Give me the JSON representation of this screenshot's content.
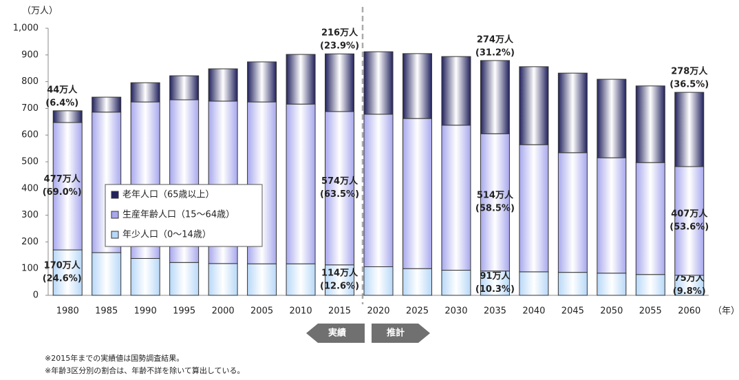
{
  "chart_data": {
    "type": "stacked_bar",
    "y_unit_label": "（万人）",
    "x_unit_label": "（年）",
    "categories": [
      "1980",
      "1985",
      "1990",
      "1995",
      "2000",
      "2005",
      "2010",
      "2015",
      "2020",
      "2025",
      "2030",
      "2035",
      "2040",
      "2045",
      "2050",
      "2055",
      "2060"
    ],
    "ylim": [
      0,
      1000
    ],
    "yticks": [
      0,
      100,
      200,
      300,
      400,
      500,
      600,
      700,
      800,
      900,
      {
        "value": 1000,
        "label": "1,000"
      }
    ],
    "series": [
      {
        "name": "年少人口（0～14歳）",
        "color": "#b8d8f8",
        "values": [
          170,
          160,
          138,
          123,
          119,
          118,
          118,
          114,
          107,
          100,
          94,
          91,
          88,
          86,
          83,
          78,
          75
        ],
        "value_labels": [
          "170万人",
          null,
          null,
          null,
          null,
          null,
          null,
          "114万人",
          null,
          null,
          null,
          "91万人",
          null,
          null,
          null,
          null,
          "75万人"
        ],
        "share_labels": [
          "(24.6%)",
          null,
          null,
          null,
          null,
          null,
          null,
          "(12.6%)",
          null,
          null,
          null,
          "(10.3%)",
          null,
          null,
          null,
          null,
          "(9.8%)"
        ]
      },
      {
        "name": "生産年齢人口（15～64歳）",
        "color": "#a8a8ee",
        "values": [
          477,
          526,
          586,
          609,
          608,
          606,
          598,
          574,
          571,
          562,
          543,
          514,
          476,
          448,
          432,
          419,
          407
        ],
        "value_labels": [
          "477万人",
          null,
          null,
          null,
          null,
          null,
          null,
          "574万人",
          null,
          null,
          null,
          "514万人",
          null,
          null,
          null,
          null,
          "407万人"
        ],
        "share_labels": [
          "(69.0%)",
          null,
          null,
          null,
          null,
          null,
          null,
          "(63.5%)",
          null,
          null,
          null,
          "(58.5%)",
          null,
          null,
          null,
          null,
          "(53.6%)"
        ]
      },
      {
        "name": "老年人口（65歳以上）",
        "color": "#22225e",
        "values": [
          44,
          56,
          72,
          90,
          121,
          150,
          186,
          216,
          234,
          243,
          257,
          274,
          292,
          298,
          294,
          287,
          278
        ],
        "value_labels": [
          "44万人",
          null,
          null,
          null,
          null,
          null,
          null,
          "216万人",
          null,
          null,
          null,
          "274万人",
          null,
          null,
          null,
          null,
          "278万人"
        ],
        "share_labels": [
          "(6.4%)",
          null,
          null,
          null,
          null,
          null,
          null,
          "(23.9%)",
          null,
          null,
          null,
          "(31.2%)",
          null,
          null,
          null,
          null,
          "(36.5%)"
        ]
      }
    ],
    "arrow_left": "実績",
    "arrow_right": "推計",
    "notes": [
      "※2015年までの実績値は国勢調査結果。",
      "※年齢3区分別の割合は、年齢不詳を除いて算出している。"
    ]
  }
}
